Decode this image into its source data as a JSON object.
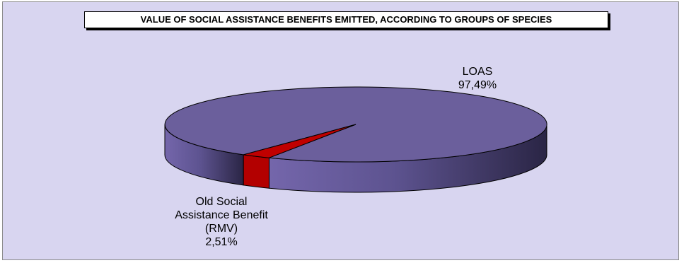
{
  "chart_data": {
    "type": "pie",
    "title": "VALUE OF SOCIAL ASSISTANCE BENEFITS EMITTED, ACCORDING TO GROUPS OF SPECIES",
    "three_d": true,
    "slices": [
      {
        "label_lines": [
          "LOAS"
        ],
        "value": 97.49,
        "value_text": "97,49%",
        "color": "#6b5f9c"
      },
      {
        "label_lines": [
          "Old Social",
          "Assistance Benefit",
          "(RMV)"
        ],
        "value": 2.51,
        "value_text": "2,51%",
        "color": "#c00000"
      }
    ],
    "background_color": "#d8d5f0"
  }
}
